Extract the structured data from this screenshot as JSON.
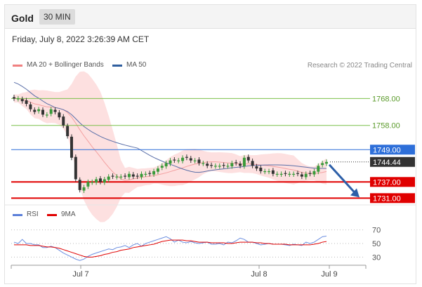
{
  "header": {
    "title": "Gold",
    "timeframe": "30 MIN"
  },
  "timestamp": "Friday, July 8, 2022 3:26:39 AM CET",
  "legend": {
    "main": [
      {
        "label": "MA 20 + Bollinger Bands",
        "color": "#f08080"
      },
      {
        "label": "MA 50",
        "color": "#2f5f9f"
      }
    ],
    "rsi": [
      {
        "label": "RSI",
        "color": "#5b7fd9"
      },
      {
        "label": "9MA",
        "color": "#e00000"
      }
    ]
  },
  "credit": "Research © 2022 Trading Central",
  "chart_data": [
    {
      "type": "candlestick",
      "x_labels": [
        "Jul 7",
        "Jul 8",
        "Jul 9"
      ],
      "ylim": [
        1729,
        1778
      ],
      "levels": [
        {
          "label": "1768.00",
          "value": 1768.0,
          "kind": "resistance",
          "color": "#7cc04a"
        },
        {
          "label": "1758.00",
          "value": 1758.0,
          "kind": "resistance",
          "color": "#7cc04a"
        },
        {
          "label": "1749.00",
          "value": 1749.0,
          "kind": "pivot",
          "color": "#2e6fd9"
        },
        {
          "label": "1744.44",
          "value": 1744.44,
          "kind": "last",
          "color": "#333333"
        },
        {
          "label": "1737.00",
          "value": 1737.0,
          "kind": "support",
          "color": "#e00000"
        },
        {
          "label": "1731.00",
          "value": 1731.0,
          "kind": "support",
          "color": "#e00000"
        }
      ],
      "close": [
        1768,
        1768,
        1767,
        1766,
        1764,
        1763,
        1764,
        1762,
        1762,
        1764,
        1763,
        1761,
        1758,
        1754,
        1746,
        1738,
        1734,
        1735,
        1737,
        1737,
        1738,
        1737,
        1738,
        1739,
        1739,
        1739,
        1739,
        1739,
        1740,
        1739,
        1739,
        1740,
        1740,
        1740,
        1741,
        1742,
        1743,
        1744,
        1745,
        1745,
        1745,
        1746,
        1746,
        1745,
        1745,
        1744,
        1744,
        1743,
        1743,
        1743,
        1743,
        1743,
        1743,
        1744,
        1744,
        1743,
        1746,
        1745,
        1743,
        1742,
        1741,
        1741,
        1741,
        1740,
        1740,
        1740,
        1740,
        1740,
        1740,
        1740,
        1739,
        1740,
        1740,
        1741,
        1743,
        1744,
        1744.44
      ]
    },
    {
      "type": "line",
      "title": "RSI",
      "yticks": [
        70,
        50,
        30
      ],
      "ylim": [
        20,
        80
      ],
      "series": [
        {
          "name": "RSI",
          "values": [
            52,
            50,
            56,
            50,
            50,
            48,
            48,
            44,
            44,
            46,
            44,
            40,
            36,
            33,
            30,
            27,
            25,
            27,
            31,
            34,
            36,
            38,
            40,
            42,
            41,
            44,
            45,
            47,
            44,
            48,
            50,
            46,
            50,
            52,
            54,
            56,
            58,
            60,
            57,
            52,
            55,
            52,
            51,
            53,
            51,
            50,
            51,
            52,
            49,
            49,
            50,
            48,
            52,
            51,
            54,
            58,
            56,
            52,
            52,
            50,
            48,
            49,
            50,
            49,
            49,
            49,
            48,
            47,
            49,
            48,
            47,
            52,
            50,
            52,
            56,
            60,
            61
          ]
        },
        {
          "name": "9MA",
          "values": [
            48,
            48,
            48,
            48,
            47,
            47,
            47,
            46,
            45,
            45,
            44,
            43,
            41,
            39,
            37,
            35,
            33,
            31,
            30,
            30,
            31,
            32,
            34,
            35,
            37,
            38,
            40,
            41,
            42,
            44,
            45,
            46,
            47,
            48,
            49,
            51,
            53,
            54,
            55,
            55,
            55,
            55,
            54,
            54,
            53,
            52,
            52,
            52,
            51,
            51,
            51,
            51,
            50,
            50,
            51,
            52,
            52,
            52,
            52,
            51,
            51,
            50,
            50,
            49,
            49,
            49,
            49,
            48,
            48,
            48,
            48,
            48,
            48,
            49,
            50,
            52,
            53
          ]
        }
      ]
    }
  ]
}
